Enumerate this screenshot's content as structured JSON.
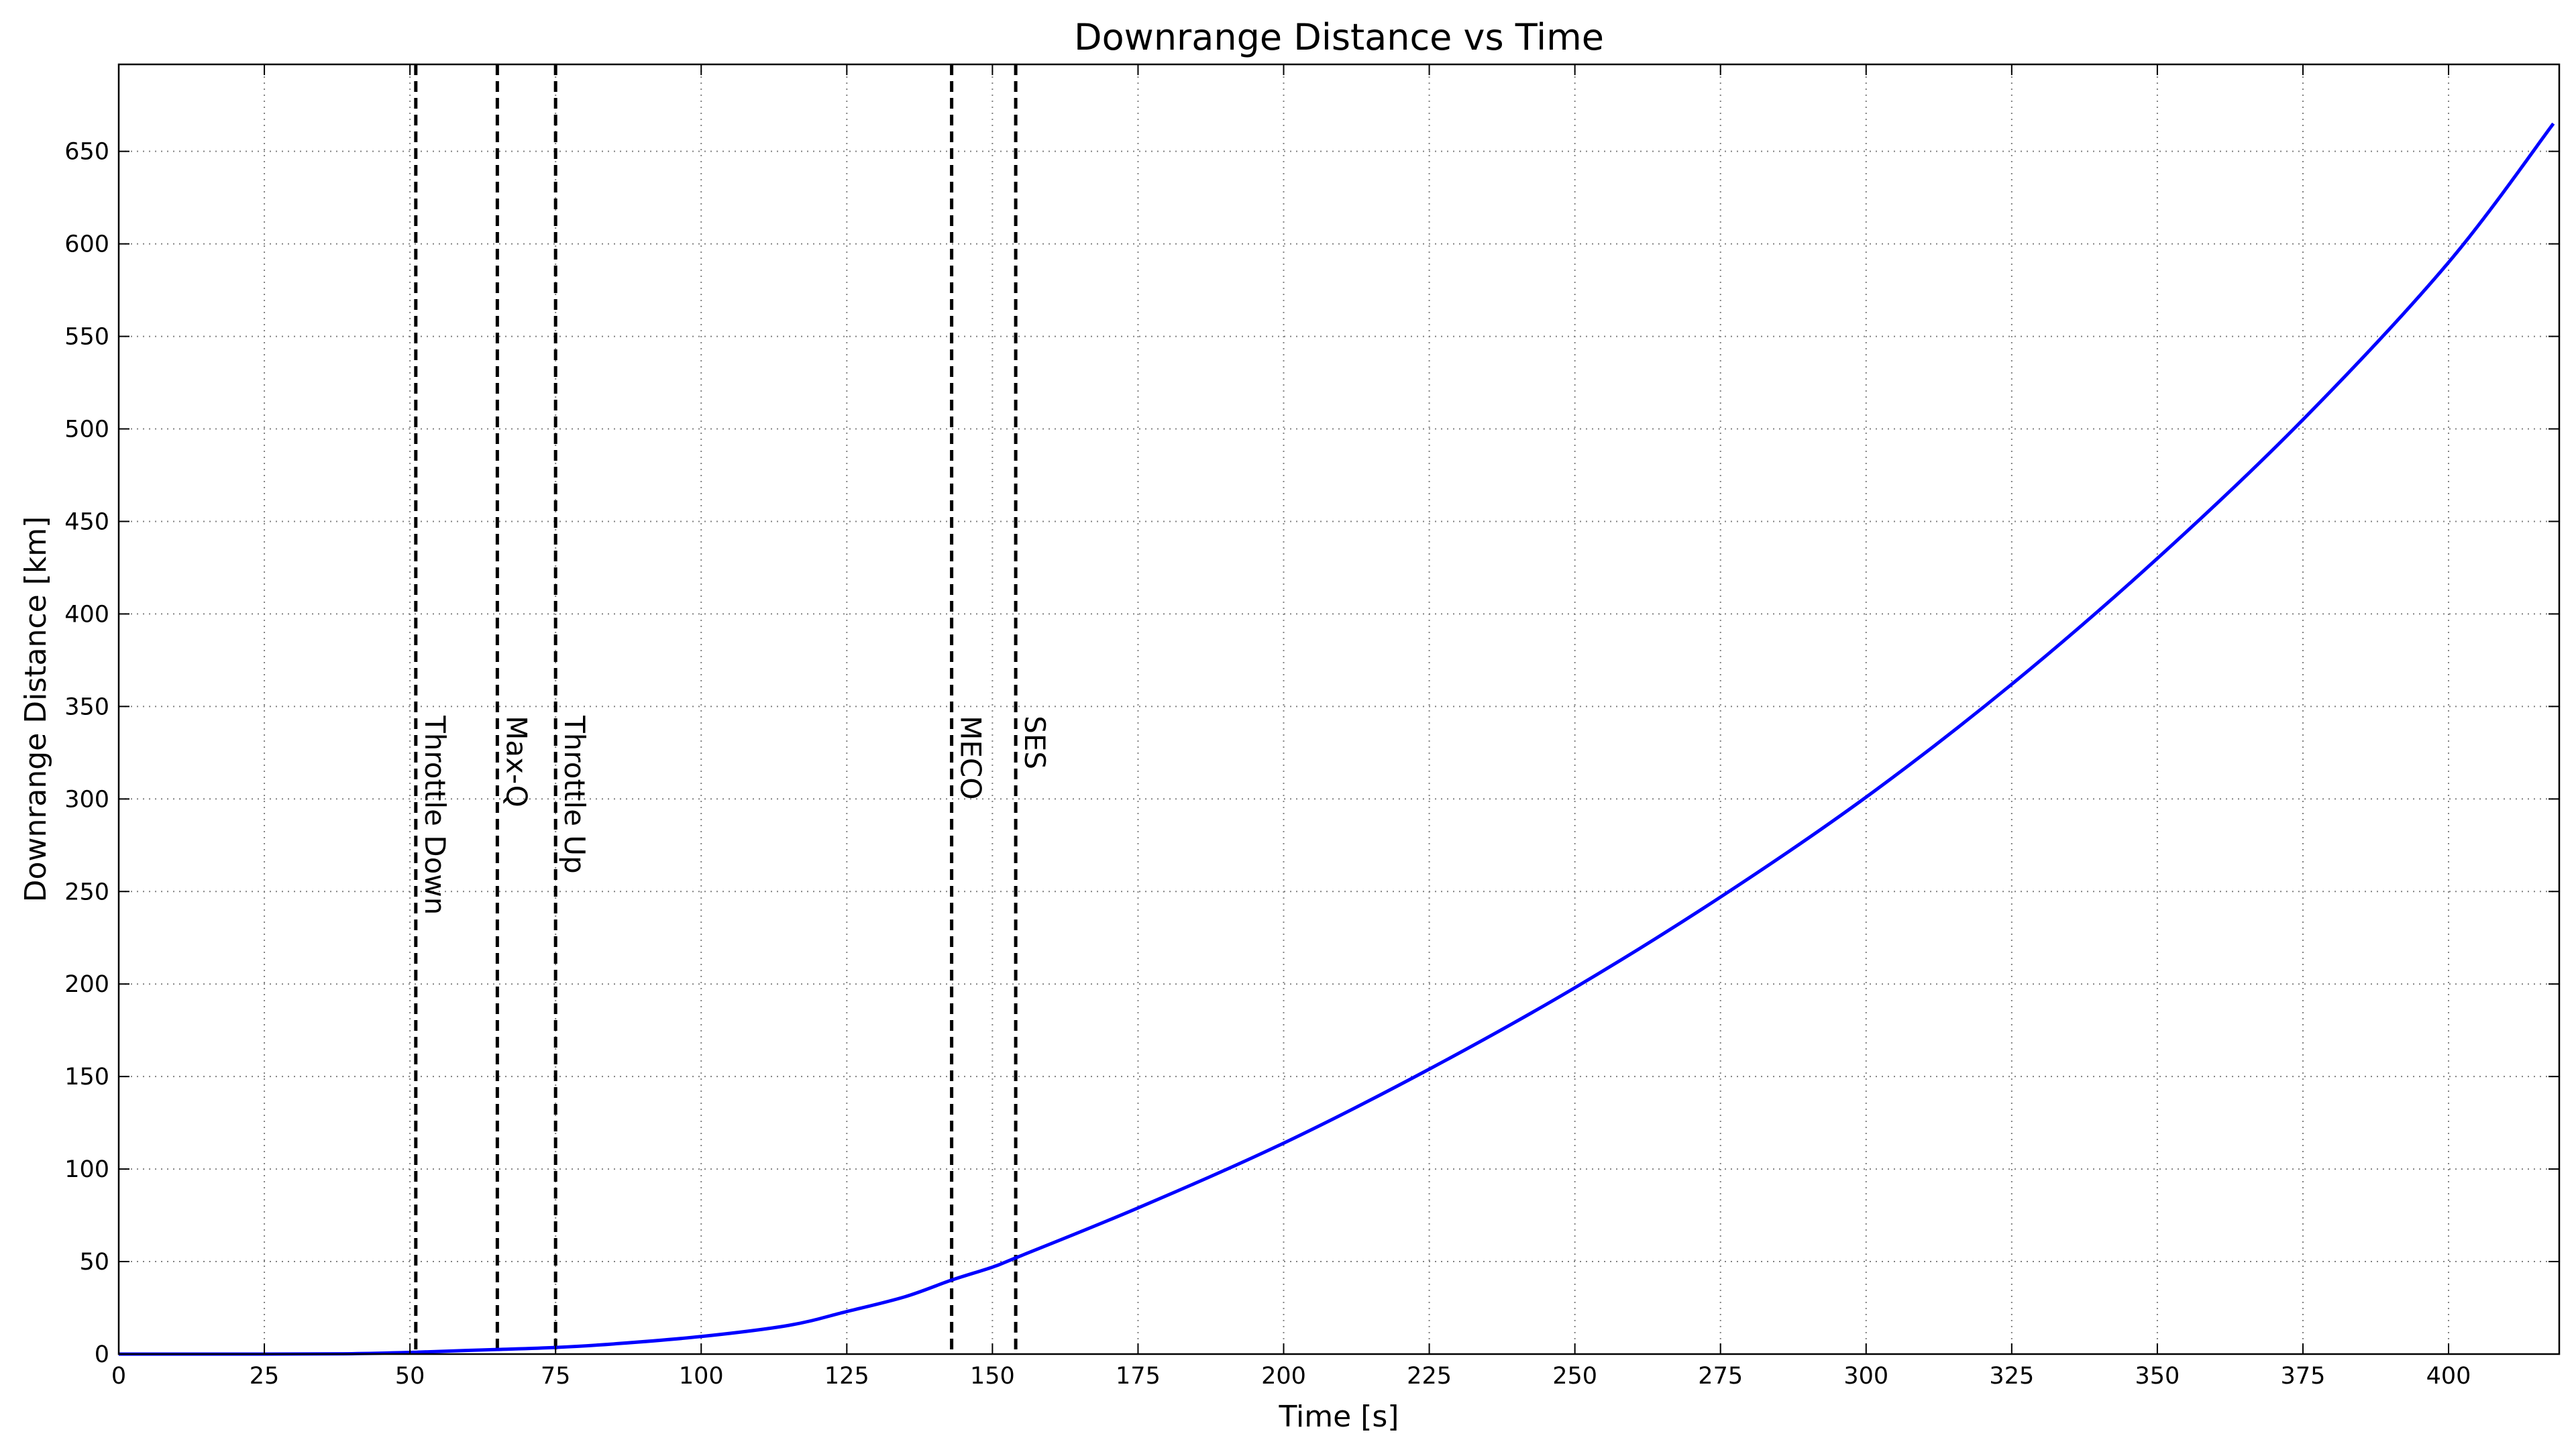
{
  "chart_data": {
    "type": "line",
    "title": "Downrange Distance vs Time",
    "xlabel": "Time [s]",
    "ylabel": "Downrange Distance [km]",
    "xlim": [
      0,
      419
    ],
    "ylim": [
      0,
      697
    ],
    "grid": true,
    "xticks": [
      0,
      25,
      50,
      75,
      100,
      125,
      150,
      175,
      200,
      225,
      250,
      275,
      300,
      325,
      350,
      375,
      400
    ],
    "xtick_labels": [
      "0",
      "25",
      "50",
      "75",
      "100",
      "125",
      "150",
      "175",
      "200",
      "225",
      "250",
      "275",
      "300",
      "325",
      "350",
      "375",
      "400"
    ],
    "yticks": [
      0,
      50,
      100,
      150,
      200,
      250,
      300,
      350,
      400,
      450,
      500,
      550,
      600,
      650
    ],
    "ytick_labels": [
      "0",
      "50",
      "100",
      "150",
      "200",
      "250",
      "300",
      "350",
      "400",
      "450",
      "500",
      "550",
      "600",
      "650"
    ],
    "series": [
      {
        "color": "#0000ff",
        "x": [
          0,
          25,
          40,
          51,
          60,
          65,
          75,
          85,
          100,
          115,
          125,
          135,
          143,
          150,
          154,
          175,
          200,
          225,
          250,
          275,
          300,
          325,
          350,
          375,
          400,
          418
        ],
        "y": [
          0,
          0,
          0.2,
          1,
          2,
          2.5,
          3.6,
          5.5,
          9.5,
          15.5,
          23,
          31,
          40,
          47,
          52,
          79,
          114,
          154,
          198,
          247,
          301,
          362,
          430,
          505,
          590,
          665
        ]
      }
    ],
    "events": [
      {
        "x": 51,
        "label": "Throttle Down"
      },
      {
        "x": 65,
        "label": "Max-Q"
      },
      {
        "x": 75,
        "label": "Throttle Up"
      },
      {
        "x": 143,
        "label": "MECO"
      },
      {
        "x": 154,
        "label": "SES"
      }
    ],
    "event_label_y": 345,
    "colors": {
      "line": "#0000ff",
      "event_line": "#000000",
      "grid": "#808080"
    }
  }
}
